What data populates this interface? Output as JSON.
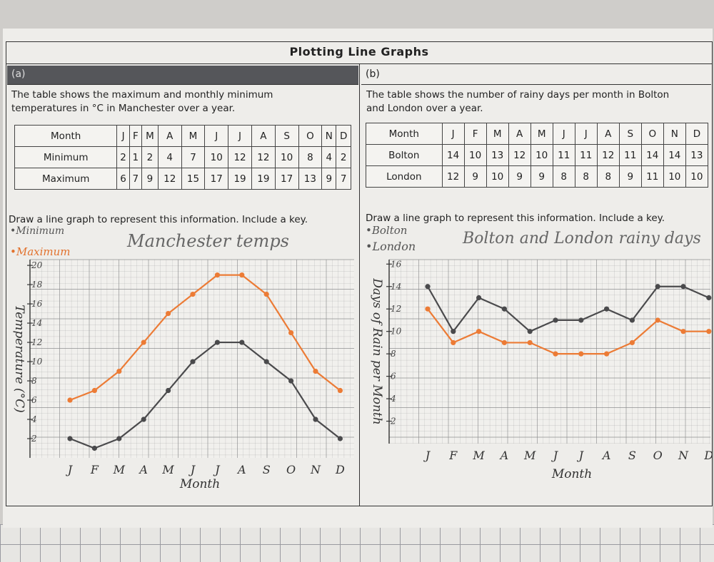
{
  "title": "Plotting Line Graphs",
  "part_a": {
    "label": "(a)",
    "description_line1": "The table shows the maximum and monthly minimum",
    "description_line2": "temperatures in °C in Manchester over a year.",
    "table": {
      "header": [
        "Month",
        "J",
        "F",
        "M",
        "A",
        "M",
        "J",
        "J",
        "A",
        "S",
        "O",
        "N",
        "D"
      ],
      "rows": [
        [
          "Minimum",
          "2",
          "1",
          "2",
          "4",
          "7",
          "10",
          "12",
          "12",
          "10",
          "8",
          "4",
          "2"
        ],
        [
          "Maximum",
          "6",
          "7",
          "9",
          "12",
          "15",
          "17",
          "19",
          "19",
          "17",
          "13",
          "9",
          "7"
        ]
      ]
    },
    "instruction": "Draw a line graph to represent this information. Include a key.",
    "key_minimum": "Minimum",
    "key_maximum": "Maximum",
    "graph_title": "Manchester temps",
    "y_axis_title": "Temperature (°C)",
    "x_axis_title": "Month"
  },
  "part_b": {
    "label": "(b)",
    "description_line1": "The table shows the number of rainy days per month in Bolton",
    "description_line2": "and London over a year.",
    "table": {
      "header": [
        "Month",
        "J",
        "F",
        "M",
        "A",
        "M",
        "J",
        "J",
        "A",
        "S",
        "O",
        "N",
        "D"
      ],
      "rows": [
        [
          "Bolton",
          "14",
          "10",
          "13",
          "12",
          "10",
          "11",
          "11",
          "12",
          "11",
          "14",
          "14",
          "13"
        ],
        [
          "London",
          "12",
          "9",
          "10",
          "9",
          "9",
          "8",
          "8",
          "8",
          "9",
          "11",
          "10",
          "10"
        ]
      ]
    },
    "instruction": "Draw a line graph to represent this information. Include a key.",
    "key_bolton": "Bolton",
    "key_london": "London",
    "graph_title": "Bolton and London rainy days",
    "y_axis_title": "Days of Rain per Month",
    "x_axis_title": "Month"
  },
  "colors": {
    "dark_line": "#4a4a4c",
    "orange_line": "#ec7b35",
    "grid": "#8a8a8c"
  },
  "chart_data": [
    {
      "type": "line",
      "title": "Manchester temps",
      "categories": [
        "J",
        "F",
        "M",
        "A",
        "M",
        "J",
        "J",
        "A",
        "S",
        "O",
        "N",
        "D"
      ],
      "series": [
        {
          "name": "Minimum",
          "values": [
            2,
            1,
            2,
            4,
            7,
            10,
            12,
            12,
            10,
            8,
            4,
            2
          ]
        },
        {
          "name": "Maximum",
          "values": [
            6,
            7,
            9,
            12,
            15,
            17,
            19,
            19,
            17,
            13,
            9,
            7
          ]
        }
      ],
      "yticks": [
        "2",
        "4",
        "6",
        "8",
        "10",
        "12",
        "14",
        "16",
        "18",
        "20"
      ],
      "ylim": [
        0,
        20.6
      ],
      "xlabel": "Month",
      "ylabel": "Temperature (°C)",
      "grid": true
    },
    {
      "type": "line",
      "title": "Bolton and London rainy days",
      "categories": [
        "J",
        "F",
        "M",
        "A",
        "M",
        "J",
        "J",
        "A",
        "S",
        "O",
        "N",
        "D"
      ],
      "series": [
        {
          "name": "Bolton",
          "values": [
            14,
            10,
            13,
            12,
            10,
            11,
            11,
            12,
            11,
            14,
            14,
            13
          ]
        },
        {
          "name": "London",
          "values": [
            12,
            9,
            10,
            9,
            9,
            8,
            8,
            8,
            9,
            11,
            10,
            10
          ]
        }
      ],
      "yticks": [
        "2",
        "4",
        "6",
        "8",
        "10",
        "12",
        "14",
        "16"
      ],
      "ylim": [
        0,
        16.4
      ],
      "xlabel": "Month",
      "ylabel": "Days of Rain per Month",
      "grid": true
    }
  ]
}
